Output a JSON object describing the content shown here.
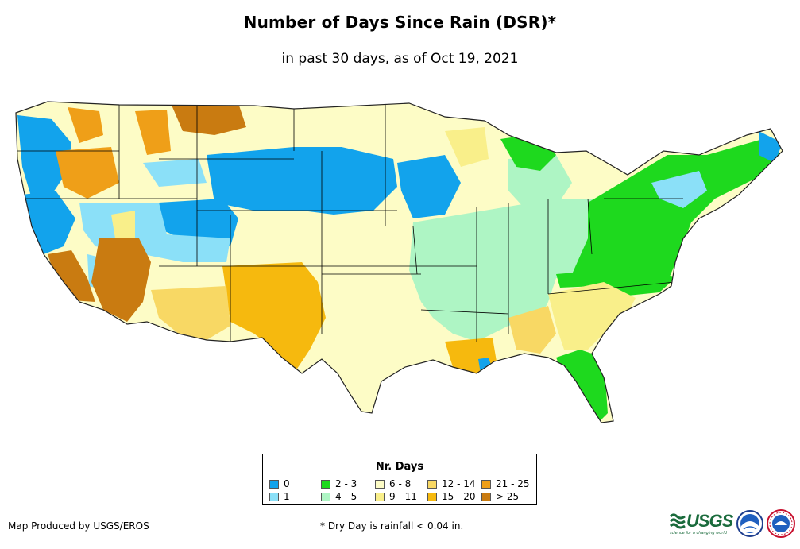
{
  "title": "Number of Days Since Rain (DSR)*",
  "subtitle": "in past 30 days, as of Oct 19, 2021",
  "legend": {
    "title": "Nr. Days",
    "items": [
      {
        "label": "0",
        "color": "#12a3ec"
      },
      {
        "label": "1",
        "color": "#8be0f8"
      },
      {
        "label": "2 - 3",
        "color": "#1ed91e"
      },
      {
        "label": "4 - 5",
        "color": "#aef5c4"
      },
      {
        "label": "6 - 8",
        "color": "#fdfcc6"
      },
      {
        "label": "9 - 11",
        "color": "#f9ef8a"
      },
      {
        "label": "12 - 14",
        "color": "#f8d864"
      },
      {
        "label": "15 - 20",
        "color": "#f6b90e"
      },
      {
        "label": "21 - 25",
        "color": "#ef9f18"
      },
      {
        "label": "> 25",
        "color": "#c97b11"
      }
    ]
  },
  "credit": "Map Produced by USGS/EROS",
  "footnote": "* Dry Day is rainfall < 0.04 in.",
  "logos": {
    "usgs_text": "USGS",
    "usgs_tagline": "science for a changing world"
  }
}
